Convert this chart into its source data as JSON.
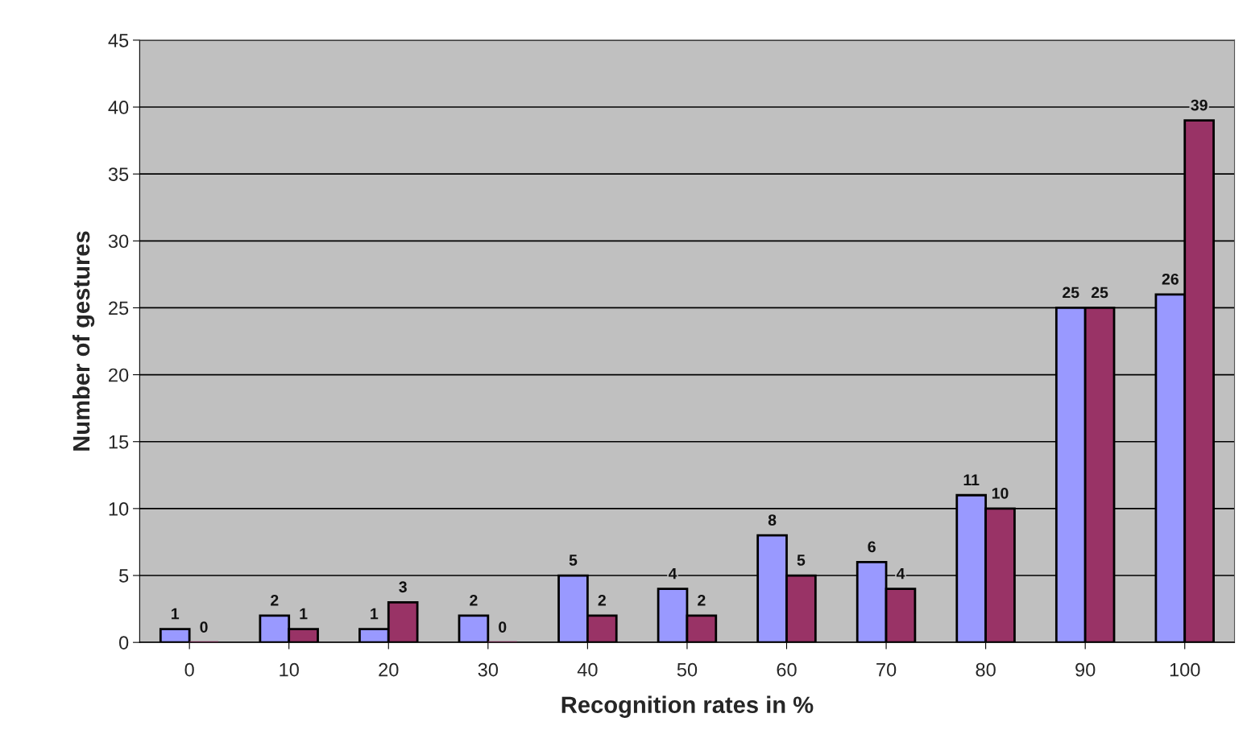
{
  "chart_data": {
    "type": "bar",
    "xlabel": "Recognition rates in %",
    "ylabel": "Number of gestures",
    "categories": [
      "0",
      "10",
      "20",
      "30",
      "40",
      "50",
      "60",
      "70",
      "80",
      "90",
      "100"
    ],
    "series": [
      {
        "color": "#9999ff",
        "values": [
          1,
          2,
          1,
          2,
          5,
          4,
          8,
          6,
          11,
          25,
          26
        ]
      },
      {
        "color": "#993366",
        "values": [
          0,
          1,
          3,
          0,
          2,
          2,
          5,
          4,
          10,
          25,
          39
        ]
      }
    ],
    "ylim": [
      0,
      45
    ],
    "yticks": [
      0,
      5,
      10,
      15,
      20,
      25,
      30,
      35,
      40,
      45
    ],
    "grid": "y",
    "data_labels": true
  }
}
